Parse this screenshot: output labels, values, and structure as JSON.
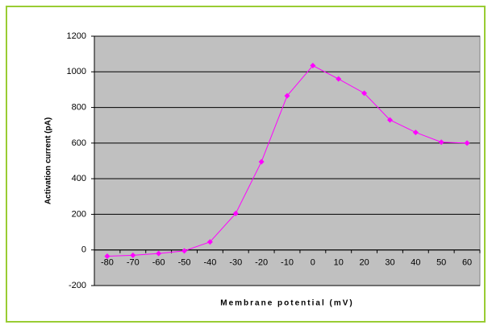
{
  "chart_data": {
    "type": "line",
    "x_label": "Membrane potential (mV)",
    "y_label": "Activation current (pA)",
    "categories": [
      -80,
      -70,
      -60,
      -50,
      -40,
      -30,
      -20,
      -10,
      0,
      10,
      20,
      30,
      40,
      50,
      60
    ],
    "values": [
      -35,
      -30,
      -20,
      -5,
      45,
      205,
      495,
      865,
      1035,
      960,
      880,
      730,
      660,
      605,
      600
    ],
    "color": "#ff00ff",
    "ylim": [
      -200,
      1200
    ],
    "yticks": [
      -200,
      0,
      200,
      400,
      600,
      800,
      1000,
      1200
    ],
    "grid": true
  }
}
